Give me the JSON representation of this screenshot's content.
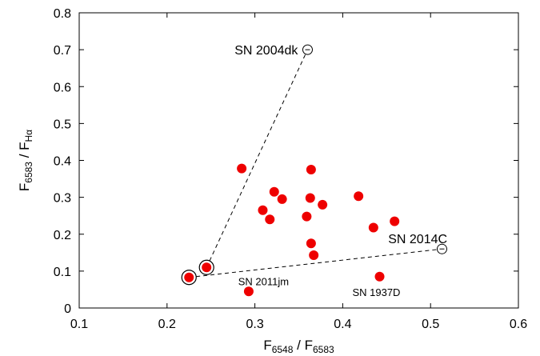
{
  "chart_data": {
    "type": "scatter",
    "title": "",
    "xlabel": {
      "main": "F",
      "sub1": "6548",
      "sep": " / F",
      "sub2": "6583"
    },
    "ylabel": {
      "main": "F",
      "sub1": "6583",
      "sep": " / F",
      "sub2": "Hα"
    },
    "xlim": [
      0.1,
      0.6
    ],
    "ylim": [
      0,
      0.8
    ],
    "xticks": [
      "0.1",
      "0.2",
      "0.3",
      "0.4",
      "0.5",
      "0.6"
    ],
    "yticks": [
      "0",
      "0.1",
      "0.2",
      "0.3",
      "0.4",
      "0.5",
      "0.6",
      "0.7",
      "0.8"
    ],
    "grid": false,
    "points": [
      {
        "x": 0.225,
        "y": 0.083
      },
      {
        "x": 0.245,
        "y": 0.11
      },
      {
        "x": 0.285,
        "y": 0.378
      },
      {
        "x": 0.293,
        "y": 0.045
      },
      {
        "x": 0.309,
        "y": 0.265
      },
      {
        "x": 0.317,
        "y": 0.24
      },
      {
        "x": 0.322,
        "y": 0.315
      },
      {
        "x": 0.331,
        "y": 0.295
      },
      {
        "x": 0.359,
        "y": 0.248
      },
      {
        "x": 0.363,
        "y": 0.298
      },
      {
        "x": 0.364,
        "y": 0.375
      },
      {
        "x": 0.364,
        "y": 0.175
      },
      {
        "x": 0.367,
        "y": 0.143
      },
      {
        "x": 0.377,
        "y": 0.28
      },
      {
        "x": 0.418,
        "y": 0.303
      },
      {
        "x": 0.435,
        "y": 0.218
      },
      {
        "x": 0.442,
        "y": 0.085
      },
      {
        "x": 0.459,
        "y": 0.235
      }
    ],
    "open_points": [
      {
        "x": 0.36,
        "y": 0.7
      },
      {
        "x": 0.513,
        "y": 0.16
      }
    ],
    "circled_points": [
      {
        "x": 0.225,
        "y": 0.083
      },
      {
        "x": 0.245,
        "y": 0.11
      }
    ],
    "dashed_lines": [
      [
        {
          "x": 0.245,
          "y": 0.11
        },
        {
          "x": 0.36,
          "y": 0.7
        }
      ],
      [
        {
          "x": 0.225,
          "y": 0.083
        },
        {
          "x": 0.513,
          "y": 0.16
        }
      ]
    ],
    "annotations": [
      {
        "text": "SN 2004dk",
        "x": 0.349,
        "y": 0.7,
        "anchor": "end",
        "size": "big"
      },
      {
        "text": "SN 2014C",
        "x": 0.519,
        "y": 0.189,
        "anchor": "end",
        "size": "big"
      },
      {
        "text": "SN 2011jm",
        "x": 0.281,
        "y": 0.075,
        "anchor": "start",
        "size": "small"
      },
      {
        "text": "SN 1937D",
        "x": 0.411,
        "y": 0.045,
        "anchor": "start",
        "size": "small"
      }
    ],
    "colors": {
      "points": "#ee0000",
      "axes": "#000000"
    }
  }
}
